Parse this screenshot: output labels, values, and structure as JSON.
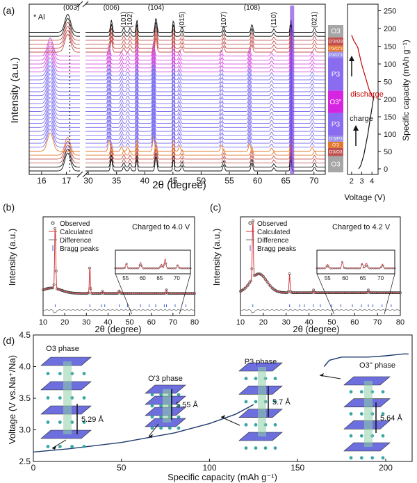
{
  "figure_label_a": "(a)",
  "figure_label_b": "(b)",
  "figure_label_c": "(c)",
  "figure_label_d": "(d)",
  "panel_a": {
    "ylabel": "Intensity (a.u.)",
    "xlabel": "2θ (degree)",
    "al_marker": "* Al",
    "star": "*",
    "left_ticks": [
      "16",
      "17"
    ],
    "right_ticks": [
      "30",
      "35",
      "40",
      "45",
      "50",
      "55",
      "60",
      "65",
      "70"
    ],
    "peaks": [
      {
        "label": "(003)",
        "x": 17.2
      },
      {
        "label": "(006)",
        "x": 34.1
      },
      {
        "label": "(101)",
        "x": 36.3
      },
      {
        "label": "(102)",
        "x": 37.4
      },
      {
        "label": "(104)",
        "x": 42.0
      },
      {
        "label": "(015)",
        "x": 46.6
      },
      {
        "label": "(107)",
        "x": 54.0
      },
      {
        "label": "(108)",
        "x": 59.0
      },
      {
        "label": "(110)",
        "x": 62.9
      },
      {
        "label": "(021)",
        "x": 70.1
      }
    ],
    "al_peaks": [
      38.6,
      45.1,
      65.9
    ],
    "phase_bands": [
      {
        "label": "O3",
        "color": "#a6a6a6",
        "from": 0,
        "to": 8
      },
      {
        "label": "O3/O3",
        "color": "#c0504d",
        "from": 8,
        "to": 12
      },
      {
        "label": "O'3",
        "color": "#e4792d",
        "from": 12,
        "to": 15
      },
      {
        "label": "O'3/P3",
        "color": "#9a8fe8",
        "from": 15,
        "to": 18
      },
      {
        "label": "P3",
        "color": "#8a6cf0",
        "from": 18,
        "to": 29
      },
      {
        "label": "O3''",
        "color": "#d625e0",
        "from": 29,
        "to": 40
      },
      {
        "label": "P3",
        "color": "#8a6cf0",
        "from": 40,
        "to": 56
      },
      {
        "label": "P3/O'3",
        "color": "#9a8fe8",
        "from": 56,
        "to": 59
      },
      {
        "label": "P3/O'3",
        "color": "#e4792d",
        "from": 59,
        "to": 62
      },
      {
        "label": "O'3/O3",
        "color": "#c0504d",
        "from": 62,
        "to": 66
      },
      {
        "label": "O3",
        "color": "#a6a6a6",
        "from": 66,
        "to": 72
      }
    ],
    "right_axis": {
      "ylabel": "Specific capacity (mAh g⁻¹)",
      "xlabel": "Voltage (V)",
      "x_ticks": [
        "2",
        "3",
        "4"
      ],
      "y_ticks_upper": [
        "0",
        "50",
        "100",
        "150",
        "200",
        "250"
      ],
      "y_ticks_lower": [
        "0",
        "50",
        "100",
        "150",
        "200"
      ],
      "charge_label": "charge",
      "discharge_label": "discharge"
    }
  },
  "panel_b": {
    "title": "Charged to 4.0 V",
    "xlabel": "2θ (degree)",
    "ylabel": "Intensity (a.u.)",
    "legend": [
      "Observed",
      "Calculated",
      "Difference",
      "Bragg peaks"
    ],
    "x_ticks": [
      "10",
      "20",
      "30",
      "40",
      "50",
      "60",
      "70",
      "80"
    ],
    "inset_ticks": [
      "55",
      "60",
      "65",
      "70"
    ]
  },
  "panel_c": {
    "title": "Charged to 4.2 V",
    "xlabel": "2θ (degree)",
    "ylabel": "Intensity (a.u.)",
    "legend": [
      "Observed",
      "Calculated",
      "Difference",
      "Bragg peaks"
    ],
    "x_ticks": [
      "10",
      "20",
      "30",
      "40",
      "50",
      "60",
      "70",
      "80"
    ],
    "inset_ticks": [
      "55",
      "60",
      "65",
      "70"
    ]
  },
  "panel_d": {
    "ylabel": "Voltage (V vs.Na⁺/Na)",
    "xlabel": "Specific capacity (mAh g⁻¹)",
    "x_ticks": [
      "0",
      "50",
      "100",
      "150",
      "200"
    ],
    "y_ticks": [
      "2.5",
      "3.0",
      "3.5",
      "4.0",
      "4.5"
    ],
    "phases": [
      {
        "name": "O3 phase",
        "spacing": "5.29 Å"
      },
      {
        "name": "O'3 phase",
        "spacing": "5.55 Å"
      },
      {
        "name": "P3 phase",
        "spacing": "5.7 Å"
      },
      {
        "name": "O3'' phase",
        "spacing": "5.64 Å"
      }
    ]
  },
  "chart_data": [
    {
      "type": "line",
      "title": "",
      "xlabel": "2θ (degree)",
      "ylabel": "Intensity (a.u.)",
      "xlim": [
        15.5,
        72
      ],
      "x_break": [
        17.6,
        29.5
      ],
      "n_patterns": 36,
      "peak_labels": [
        "(003)",
        "(006)",
        "(101)",
        "(102)",
        "(104)",
        "(015)",
        "(107)",
        "(108)",
        "(110)",
        "(021)"
      ]
    },
    {
      "type": "line",
      "title": "",
      "xlabel": "Voltage (V)",
      "ylabel": "Specific capacity (mAh g⁻¹)",
      "series": [
        {
          "name": "charge",
          "x": [
            2.7,
            2.9,
            3.2,
            3.6,
            3.8,
            4.0,
            4.1,
            4.2
          ],
          "y": [
            0,
            10,
            40,
            100,
            140,
            175,
            195,
            210
          ]
        },
        {
          "name": "discharge",
          "x": [
            4.2,
            4.0,
            3.7,
            3.4,
            3.0,
            2.6,
            2.2,
            2.0
          ],
          "y": [
            210,
            220,
            240,
            270,
            310,
            360,
            380,
            395
          ]
        }
      ]
    },
    {
      "type": "line",
      "title": "Charged to 4.0 V",
      "xlabel": "2θ (degree)",
      "ylabel": "Intensity (a.u.)",
      "xlim": [
        10,
        80
      ],
      "series": [
        {
          "name": "Observed",
          "x": [
            10,
            15.6,
            20,
            31.6,
            40,
            45.2,
            60,
            67,
            80
          ],
          "y": [
            0.12,
            1.0,
            0.1,
            0.42,
            0.04,
            0.06,
            0.03,
            0.05,
            0.02
          ]
        },
        {
          "name": "Calculated",
          "x": [
            10,
            15.6,
            20,
            31.6,
            40,
            45.2,
            60,
            67,
            80
          ],
          "y": [
            0.12,
            1.0,
            0.1,
            0.42,
            0.04,
            0.06,
            0.03,
            0.05,
            0.02
          ]
        }
      ]
    },
    {
      "type": "line",
      "title": "Charged to 4.2 V",
      "xlabel": "2θ (degree)",
      "ylabel": "Intensity (a.u.)",
      "xlim": [
        10,
        80
      ],
      "series": [
        {
          "name": "Observed",
          "x": [
            10,
            15.4,
            18,
            25,
            31.5,
            40,
            60,
            80
          ],
          "y": [
            0.15,
            1.0,
            0.35,
            0.18,
            0.3,
            0.1,
            0.06,
            0.05
          ]
        },
        {
          "name": "Calculated",
          "x": [
            10,
            15.4,
            18,
            25,
            31.5,
            40,
            60,
            80
          ],
          "y": [
            0.15,
            1.0,
            0.35,
            0.18,
            0.3,
            0.1,
            0.06,
            0.05
          ]
        }
      ]
    },
    {
      "type": "line",
      "title": "",
      "xlabel": "Specific capacity (mAh g⁻¹)",
      "ylabel": "Voltage (V vs.Na⁺/Na)",
      "xlim": [
        0,
        215
      ],
      "ylim": [
        2.5,
        4.5
      ],
      "series": [
        {
          "name": "",
          "x": [
            0,
            20,
            50,
            80,
            100,
            115,
            125
          ],
          "y": [
            2.65,
            2.7,
            2.8,
            2.95,
            3.1,
            3.25,
            3.4
          ]
        },
        {
          "name": "",
          "x": [
            165,
            168,
            175,
            190,
            200,
            210,
            213
          ],
          "y": [
            4.0,
            4.1,
            4.15,
            4.15,
            4.17,
            4.2,
            4.2
          ]
        }
      ]
    }
  ]
}
